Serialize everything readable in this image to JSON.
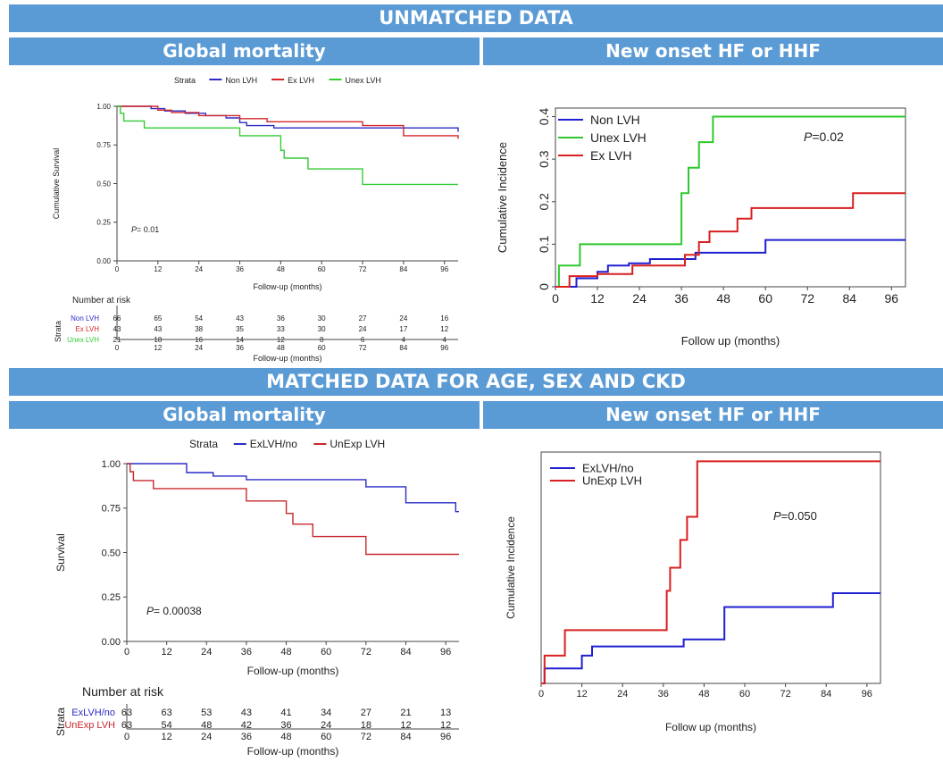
{
  "banners": {
    "unmatched": "UNMATCHED DATA",
    "matched": "MATCHED DATA FOR AGE, SEX AND CKD"
  },
  "subheaders": {
    "global": "Global mortality",
    "hf": "New onset HF or HHF"
  },
  "chart_data": [
    {
      "type": "line",
      "panel": "unmatched-global-mortality",
      "legend_title": "Strata",
      "legend_position": "top",
      "xlabel": "Follow-up (months)",
      "ylabel": "Cumulative Survival",
      "xlim": [
        0,
        100
      ],
      "ylim": [
        0,
        1
      ],
      "xticks": [
        "0",
        "12",
        "24",
        "36",
        "48",
        "60",
        "72",
        "84",
        "96"
      ],
      "yticks": [
        "0.00",
        "0.25",
        "0.50",
        "0.75",
        "1.00"
      ],
      "p_prefix": "P",
      "p_value": "= 0.01",
      "series": [
        {
          "name": "Non LVH",
          "color": "#2b2bc8",
          "steps": [
            [
              0,
              1
            ],
            [
              10,
              0.985
            ],
            [
              14,
              0.97
            ],
            [
              20,
              0.955
            ],
            [
              26,
              0.94
            ],
            [
              32,
              0.925
            ],
            [
              36,
              0.895
            ],
            [
              38,
              0.875
            ],
            [
              46,
              0.86
            ],
            [
              96,
              0.86
            ],
            [
              100,
              0.835
            ]
          ]
        },
        {
          "name": "Ex LVH",
          "color": "#d62728",
          "steps": [
            [
              0,
              1
            ],
            [
              12,
              0.975
            ],
            [
              16,
              0.96
            ],
            [
              24,
              0.94
            ],
            [
              36,
              0.92
            ],
            [
              44,
              0.9
            ],
            [
              72,
              0.875
            ],
            [
              84,
              0.81
            ],
            [
              100,
              0.79
            ]
          ]
        },
        {
          "name": "Unex LVH",
          "color": "#33cc33",
          "steps": [
            [
              0,
              1
            ],
            [
              1,
              0.955
            ],
            [
              2,
              0.905
            ],
            [
              8,
              0.86
            ],
            [
              36,
              0.81
            ],
            [
              48,
              0.715
            ],
            [
              49,
              0.665
            ],
            [
              56,
              0.595
            ],
            [
              72,
              0.495
            ],
            [
              100,
              0.495
            ]
          ]
        }
      ],
      "risk_table": {
        "title": "Number at risk",
        "strata_label": "Strata",
        "xlabel": "Follow-up (months)",
        "times": [
          "0",
          "12",
          "24",
          "36",
          "48",
          "60",
          "72",
          "84",
          "96"
        ],
        "rows": [
          {
            "name": "Non LVH",
            "color": "#2b2bc8",
            "values": [
              "66",
              "65",
              "54",
              "43",
              "36",
              "30",
              "27",
              "24",
              "16"
            ]
          },
          {
            "name": "Ex LVH",
            "color": "#d62728",
            "values": [
              "43",
              "43",
              "38",
              "35",
              "33",
              "30",
              "24",
              "17",
              "12"
            ]
          },
          {
            "name": "Unex LVH",
            "color": "#33cc33",
            "values": [
              "21",
              "18",
              "16",
              "14",
              "12",
              "8",
              "6",
              "4",
              "4"
            ]
          }
        ]
      }
    },
    {
      "type": "line",
      "panel": "unmatched-new-onset-hf",
      "legend_position": "top-left",
      "xlabel": "Follow up (months)",
      "ylabel": "Cumulative Incidence",
      "xlim": [
        0,
        100
      ],
      "ylim": [
        0,
        0.42
      ],
      "xticks": [
        "0",
        "12",
        "24",
        "36",
        "48",
        "60",
        "72",
        "84",
        "96"
      ],
      "yticks": [
        "0",
        "0.1",
        "0.2",
        "0.3",
        "0.4"
      ],
      "p_prefix": "P",
      "p_value": "=0.02",
      "series": [
        {
          "name": "Non LVH",
          "color": "#1f1fd1",
          "steps": [
            [
              0,
              0
            ],
            [
              6,
              0.02
            ],
            [
              12,
              0.035
            ],
            [
              15,
              0.05
            ],
            [
              21,
              0.055
            ],
            [
              27,
              0.065
            ],
            [
              40,
              0.08
            ],
            [
              60,
              0.11
            ],
            [
              100,
              0.11
            ]
          ]
        },
        {
          "name": "Unex LVH",
          "color": "#2ec82e",
          "steps": [
            [
              0,
              0
            ],
            [
              1,
              0.05
            ],
            [
              7,
              0.1
            ],
            [
              36,
              0.22
            ],
            [
              38,
              0.28
            ],
            [
              41,
              0.34
            ],
            [
              45,
              0.4
            ],
            [
              100,
              0.4
            ]
          ]
        },
        {
          "name": "Ex LVH",
          "color": "#d91f1f",
          "steps": [
            [
              0,
              0
            ],
            [
              4,
              0.025
            ],
            [
              12,
              0.03
            ],
            [
              22,
              0.05
            ],
            [
              37,
              0.075
            ],
            [
              41,
              0.105
            ],
            [
              44,
              0.13
            ],
            [
              52,
              0.16
            ],
            [
              56,
              0.185
            ],
            [
              85,
              0.22
            ],
            [
              100,
              0.22
            ]
          ]
        }
      ]
    },
    {
      "type": "line",
      "panel": "matched-global-mortality",
      "legend_title": "Strata",
      "legend_position": "top",
      "xlabel": "Follow-up (months)",
      "ylabel": "Survival",
      "xlim": [
        0,
        100
      ],
      "ylim": [
        0,
        1
      ],
      "xticks": [
        "0",
        "12",
        "24",
        "36",
        "48",
        "60",
        "72",
        "84",
        "96"
      ],
      "yticks": [
        "0.00",
        "0.25",
        "0.50",
        "0.75",
        "1.00"
      ],
      "p_prefix": "P",
      "p_value": "= 0.00038",
      "series": [
        {
          "name": "ExLVH/no",
          "color": "#2b2bc8",
          "steps": [
            [
              0,
              1
            ],
            [
              18,
              0.95
            ],
            [
              26,
              0.93
            ],
            [
              36,
              0.91
            ],
            [
              72,
              0.87
            ],
            [
              84,
              0.78
            ],
            [
              99,
              0.73
            ],
            [
              100,
              0.73
            ]
          ]
        },
        {
          "name": "UnExp LVH",
          "color": "#c8282d",
          "steps": [
            [
              0,
              1
            ],
            [
              1,
              0.955
            ],
            [
              2,
              0.905
            ],
            [
              8,
              0.86
            ],
            [
              36,
              0.79
            ],
            [
              48,
              0.72
            ],
            [
              50,
              0.66
            ],
            [
              56,
              0.59
            ],
            [
              72,
              0.49
            ],
            [
              100,
              0.49
            ]
          ]
        }
      ],
      "risk_table": {
        "title": "Number at risk",
        "strata_label": "Strata",
        "xlabel": "Follow-up (months)",
        "times": [
          "0",
          "12",
          "24",
          "36",
          "48",
          "60",
          "72",
          "84",
          "96"
        ],
        "rows": [
          {
            "name": "ExLVH/no",
            "color": "#2b2bc8",
            "values": [
              "63",
              "63",
              "53",
              "43",
              "41",
              "34",
              "27",
              "21",
              "13"
            ]
          },
          {
            "name": "UnExp LVH",
            "color": "#c8282d",
            "values": [
              "63",
              "54",
              "48",
              "42",
              "36",
              "24",
              "18",
              "12",
              "12"
            ]
          }
        ]
      }
    },
    {
      "type": "line",
      "panel": "matched-new-onset-hf",
      "legend_position": "top-left",
      "xlabel": "Follow up (months)",
      "ylabel": "Cumulative Incidence",
      "xlim": [
        0,
        100
      ],
      "ylim": [
        0,
        1
      ],
      "xticks": [
        "0",
        "12",
        "24",
        "36",
        "48",
        "60",
        "72",
        "84",
        "96"
      ],
      "yticks": [],
      "p_prefix": "P",
      "p_value": "=0.050",
      "series": [
        {
          "name": "ExLVH/no",
          "color": "#1f1fd1",
          "steps": [
            [
              0,
              0
            ],
            [
              1,
              0.065
            ],
            [
              4,
              0.065
            ],
            [
              12,
              0.12
            ],
            [
              15,
              0.16
            ],
            [
              42,
              0.19
            ],
            [
              54,
              0.33
            ],
            [
              86,
              0.39
            ],
            [
              100,
              0.39
            ]
          ]
        },
        {
          "name": "UnExp LVH",
          "color": "#d91f1f",
          "steps": [
            [
              0,
              0
            ],
            [
              1,
              0.12
            ],
            [
              7,
              0.23
            ],
            [
              37,
              0.4
            ],
            [
              38,
              0.5
            ],
            [
              41,
              0.62
            ],
            [
              43,
              0.72
            ],
            [
              46,
              0.96
            ],
            [
              100,
              0.96
            ]
          ]
        }
      ]
    }
  ]
}
